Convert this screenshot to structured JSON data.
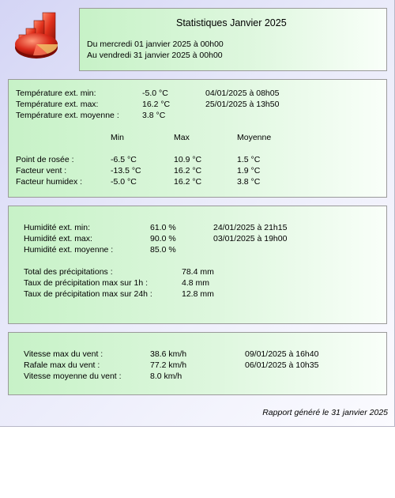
{
  "header": {
    "title": "Statistiques Janvier 2025",
    "from": "Du mercredi 01 janvier 2025 à 00h00",
    "to": "Au vendredi 31 janvier 2025 à 00h00"
  },
  "temperature": {
    "min_label": "Température ext. min:",
    "min_value": "-5.0 °C",
    "min_date": "04/01/2025 à 08h05",
    "max_label": "Température ext. max:",
    "max_value": "16.2 °C",
    "max_date": "25/01/2025 à 13h50",
    "avg_label": "Température ext. moyenne :",
    "avg_value": "3.8 °C",
    "col_min": "Min",
    "col_max": "Max",
    "col_avg": "Moyenne",
    "rows": [
      {
        "label": "Point de rosée :",
        "min": "-6.5 °C",
        "max": "10.9 °C",
        "avg": "1.5 °C"
      },
      {
        "label": "Facteur vent :",
        "min": "-13.5 °C",
        "max": "16.2 °C",
        "avg": "1.9 °C"
      },
      {
        "label": "Facteur humidex :",
        "min": "-5.0 °C",
        "max": "16.2 °C",
        "avg": "3.8 °C"
      }
    ]
  },
  "humidity": {
    "min_label": "Humidité ext. min:",
    "min_value": "61.0 %",
    "min_date": "24/01/2025 à 21h15",
    "max_label": "Humidité ext. max:",
    "max_value": "90.0 %",
    "max_date": "03/01/2025 à 19h00",
    "avg_label": "Humidité ext. moyenne :",
    "avg_value": "85.0 %",
    "precip_total_label": "Total des précipitations :",
    "precip_total_value": "78.4 mm",
    "rate_1h_label": "Taux de précipitation max sur 1h :",
    "rate_1h_value": "4.8 mm",
    "rate_24h_label": "Taux de précipitation max sur 24h :",
    "rate_24h_value": "12.8 mm"
  },
  "wind": {
    "max_label": "Vitesse max du vent :",
    "max_value": "38.6 km/h",
    "max_date": "09/01/2025 à 16h40",
    "gust_label": "Rafale max du vent :",
    "gust_value": "77.2 km/h",
    "gust_date": "06/01/2025 à 10h35",
    "avg_label": "Vitesse moyenne du vent :",
    "avg_value": "8.0 km/h"
  },
  "footer": "Rapport généré le 31 janvier 2025",
  "icons": {
    "logo": "stats-chart-icon"
  },
  "colors": {
    "panel_green": "#c7f2c7",
    "page_lavender": "#d4d5f5",
    "logo_red": "#d42a1a"
  }
}
